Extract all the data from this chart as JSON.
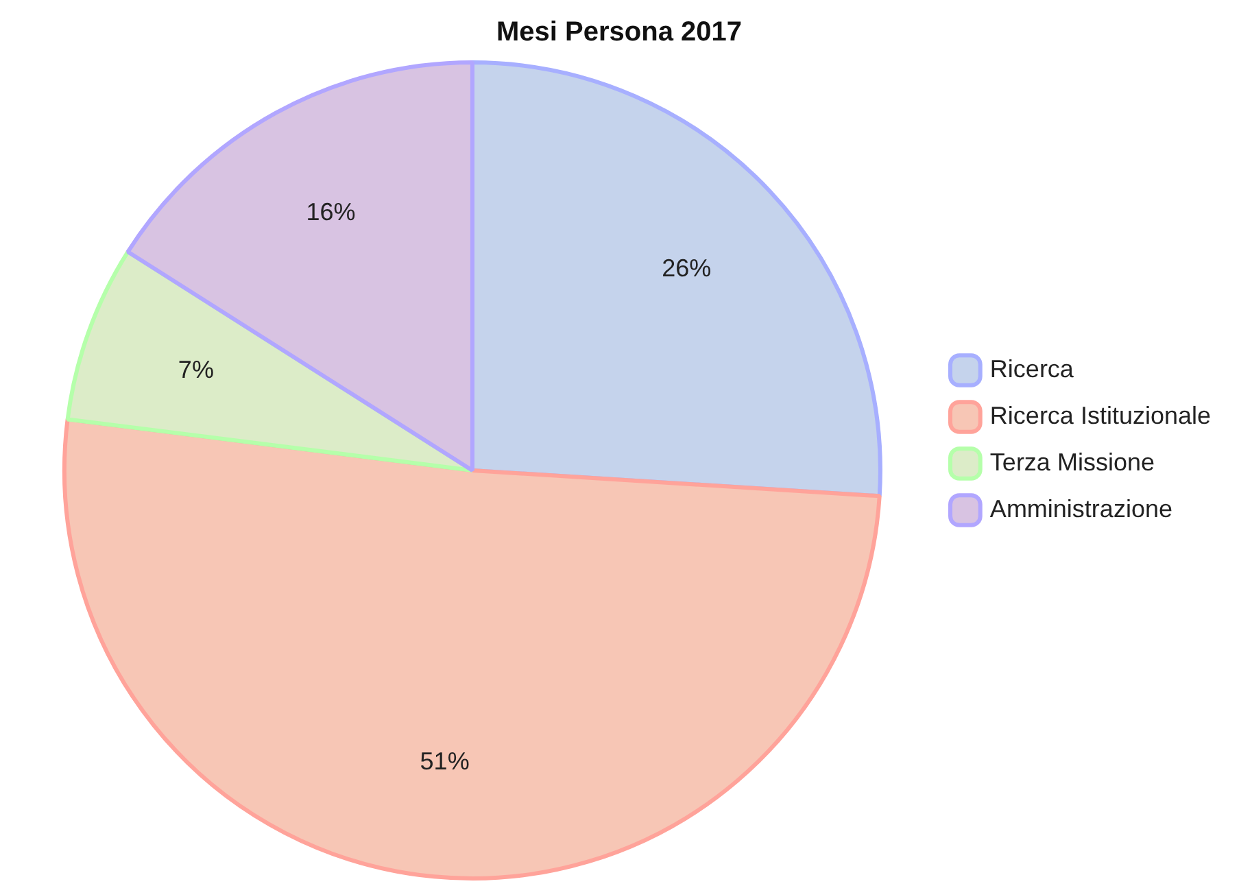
{
  "chart_data": {
    "type": "pie",
    "title": "Mesi Persona 2017",
    "categories": [
      "Ricerca",
      "Ricerca Istituzionale",
      "Terza Missione",
      "Amministrazione"
    ],
    "values": [
      26,
      51,
      7,
      16
    ],
    "colors": [
      "#c5d3ec",
      "#f7c6b5",
      "#dcecc8",
      "#d8c3e2"
    ],
    "value_labels": [
      "26%",
      "51%",
      "7%",
      "16%"
    ],
    "legend": "right"
  }
}
